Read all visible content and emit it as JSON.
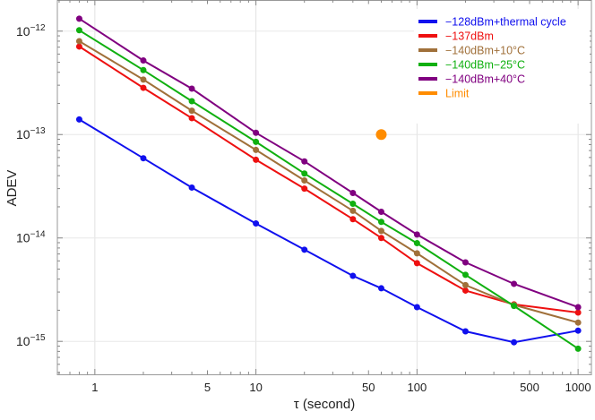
{
  "chart_data": {
    "type": "line",
    "xlabel": "τ (second)",
    "ylabel": "ADEV",
    "xscale": "log",
    "yscale": "log",
    "xlim": [
      0.585,
      1210
    ],
    "ylim": [
      4.8e-16,
      2e-12
    ],
    "grid": true,
    "legend_position": "top-right",
    "x_ticks": [
      {
        "value": 1,
        "label": "1"
      },
      {
        "value": 5,
        "label": "5"
      },
      {
        "value": 10,
        "label": "10"
      },
      {
        "value": 50,
        "label": "50"
      },
      {
        "value": 100,
        "label": "100"
      },
      {
        "value": 500,
        "label": "500"
      },
      {
        "value": 1000,
        "label": "1000"
      }
    ],
    "y_ticks": [
      {
        "value": 1e-12,
        "base": "10",
        "exp": "−12"
      },
      {
        "value": 1e-13,
        "base": "10",
        "exp": "−13"
      },
      {
        "value": 1e-14,
        "base": "10",
        "exp": "−14"
      },
      {
        "value": 1e-15,
        "base": "10",
        "exp": "−15"
      }
    ],
    "x": [
      0.8,
      2,
      4,
      10,
      20,
      40,
      60,
      100,
      200,
      400,
      1000
    ],
    "series": [
      {
        "name": "−128dBm+thermal cycle",
        "color": "#1010ee",
        "values": [
          1.4e-13,
          5.9e-14,
          3.07e-14,
          1.38e-14,
          7.7e-15,
          4.3e-15,
          3.26e-15,
          2.14e-15,
          1.25e-15,
          9.8e-16,
          1.27e-15
        ]
      },
      {
        "name": "−137dBm",
        "color": "#ee1010",
        "values": [
          7.1e-13,
          2.83e-13,
          1.44e-13,
          5.7e-14,
          3e-14,
          1.52e-14,
          1e-14,
          5.7e-15,
          3.1e-15,
          2.28e-15,
          1.9e-15
        ]
      },
      {
        "name": "−140dBm+10°C",
        "color": "#a0703a",
        "values": [
          8e-13,
          3.4e-13,
          1.7e-13,
          7.1e-14,
          3.6e-14,
          1.83e-14,
          1.17e-14,
          7.1e-15,
          3.5e-15,
          2.25e-15,
          1.52e-15
        ]
      },
      {
        "name": "−140dBm−25°C",
        "color": "#10b010",
        "values": [
          1.02e-12,
          4.2e-13,
          2.1e-13,
          8.5e-14,
          4.2e-14,
          2.14e-14,
          1.43e-14,
          8.9e-15,
          4.4e-15,
          2.2e-15,
          8.5e-16
        ]
      },
      {
        "name": "−140dBm+40°C",
        "color": "#800080",
        "values": [
          1.32e-12,
          5.2e-13,
          2.78e-13,
          1.04e-13,
          5.5e-14,
          2.72e-14,
          1.79e-14,
          1.08e-14,
          5.8e-15,
          3.6e-15,
          2.14e-15
        ]
      }
    ],
    "limit": {
      "name": "Limit",
      "color": "#ff8c00",
      "x": 60,
      "y": 1e-13
    }
  }
}
